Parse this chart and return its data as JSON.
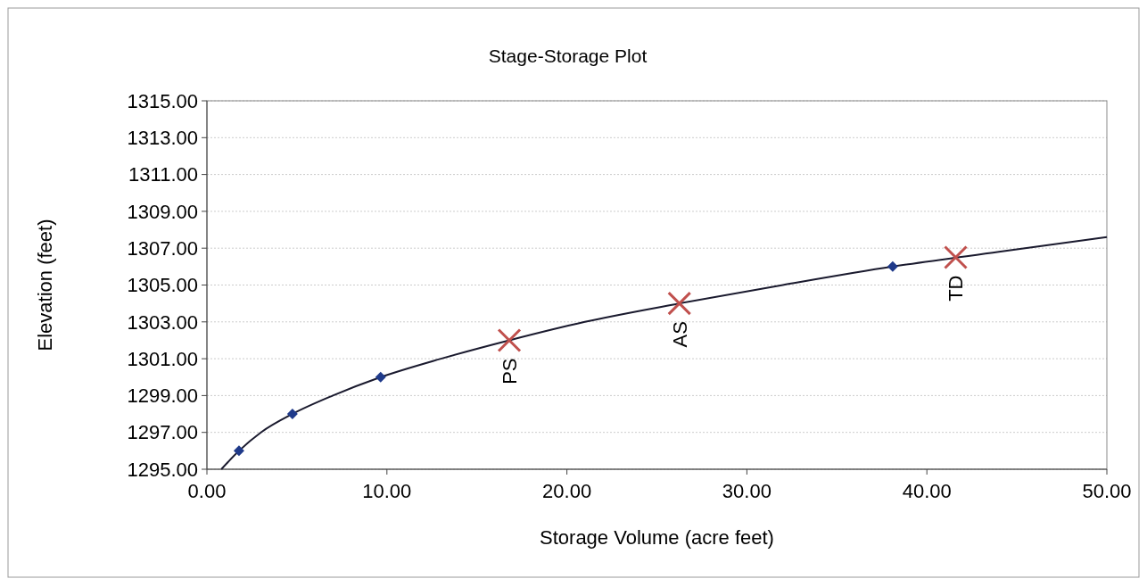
{
  "chart_data": {
    "type": "scatter",
    "title": "Stage-Storage Plot",
    "xlabel": "Storage Volume (acre feet)",
    "ylabel": "Elevation (feet)",
    "xlim": [
      0,
      50
    ],
    "ylim": [
      1295,
      1315
    ],
    "xticks": [
      {
        "value": 0,
        "label": "0.00"
      },
      {
        "value": 10,
        "label": "10.00"
      },
      {
        "value": 20,
        "label": "20.00"
      },
      {
        "value": 30,
        "label": "30.00"
      },
      {
        "value": 40,
        "label": "40.00"
      },
      {
        "value": 50,
        "label": "50.00"
      }
    ],
    "yticks": [
      {
        "value": 1295,
        "label": "1295.00"
      },
      {
        "value": 1297,
        "label": "1297.00"
      },
      {
        "value": 1299,
        "label": "1299.00"
      },
      {
        "value": 1301,
        "label": "1301.00"
      },
      {
        "value": 1303,
        "label": "1303.00"
      },
      {
        "value": 1305,
        "label": "1305.00"
      },
      {
        "value": 1307,
        "label": "1307.00"
      },
      {
        "value": 1309,
        "label": "1309.00"
      },
      {
        "value": 1311,
        "label": "1311.00"
      },
      {
        "value": 1313,
        "label": "1313.00"
      },
      {
        "value": 1315,
        "label": "1315.00"
      }
    ],
    "grid": "y",
    "series": [
      {
        "type": "line",
        "color": "#1a1a2e",
        "marker": "none",
        "line_style": "solid",
        "x": [
          0.8,
          1.78,
          3,
          4.75,
          7,
          9.65,
          13,
          16.8,
          21,
          26.25,
          32,
          38.1,
          44,
          50
        ],
        "values": [
          1295,
          1296,
          1297,
          1298,
          1299,
          1300,
          1301,
          1302,
          1303,
          1304,
          1305,
          1306,
          1306.8,
          1307.6
        ]
      },
      {
        "color": "#1f3a8a",
        "marker": "diamond",
        "x": [
          1.78,
          4.75,
          9.65,
          38.1
        ],
        "values": [
          1296,
          1298,
          1300,
          1306
        ]
      },
      {
        "type": "scatter",
        "color": "#c0504d",
        "marker": "cross",
        "x": [
          16.8,
          26.25,
          41.6
        ],
        "values": [
          1302,
          1304,
          1306.5
        ],
        "value_labels": [
          "PS",
          "AS",
          "TD"
        ]
      }
    ]
  }
}
